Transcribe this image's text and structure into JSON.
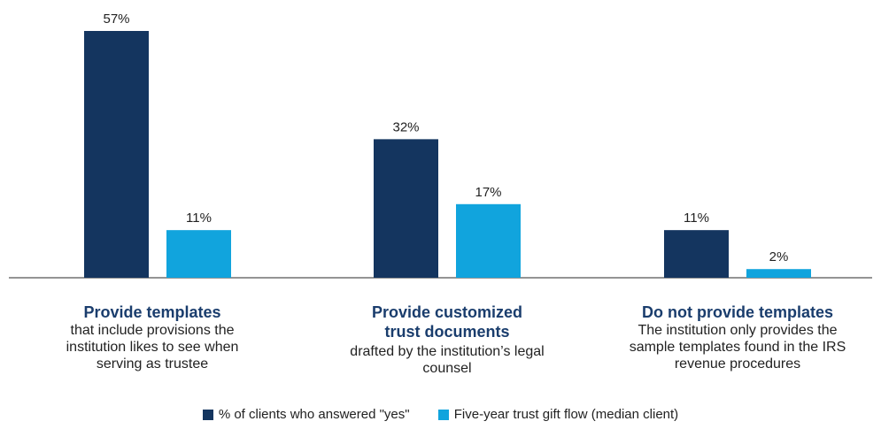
{
  "chart_data": {
    "type": "bar",
    "categories": [
      {
        "head": "Provide templates",
        "desc": "that include provisions the institution likes to see when serving as trustee"
      },
      {
        "head": "Provide customized trust documents",
        "desc": "drafted by the institution’s legal counsel"
      },
      {
        "head": "Do not provide templates",
        "desc": "The institution only provides the sample templates found in the IRS revenue procedures"
      }
    ],
    "series": [
      {
        "name": "% of clients who answered \"yes\"",
        "color": "#14355f",
        "values": [
          57,
          32,
          11
        ],
        "labels": [
          "57%",
          "32%",
          "11%"
        ]
      },
      {
        "name": "Five-year trust gift flow (median client)",
        "color": "#11a4dd",
        "values": [
          11,
          17,
          2
        ],
        "labels": [
          "11%",
          "17%",
          "2%"
        ]
      }
    ],
    "ylim": [
      0,
      60
    ],
    "grid": false,
    "legend_position": "bottom"
  }
}
